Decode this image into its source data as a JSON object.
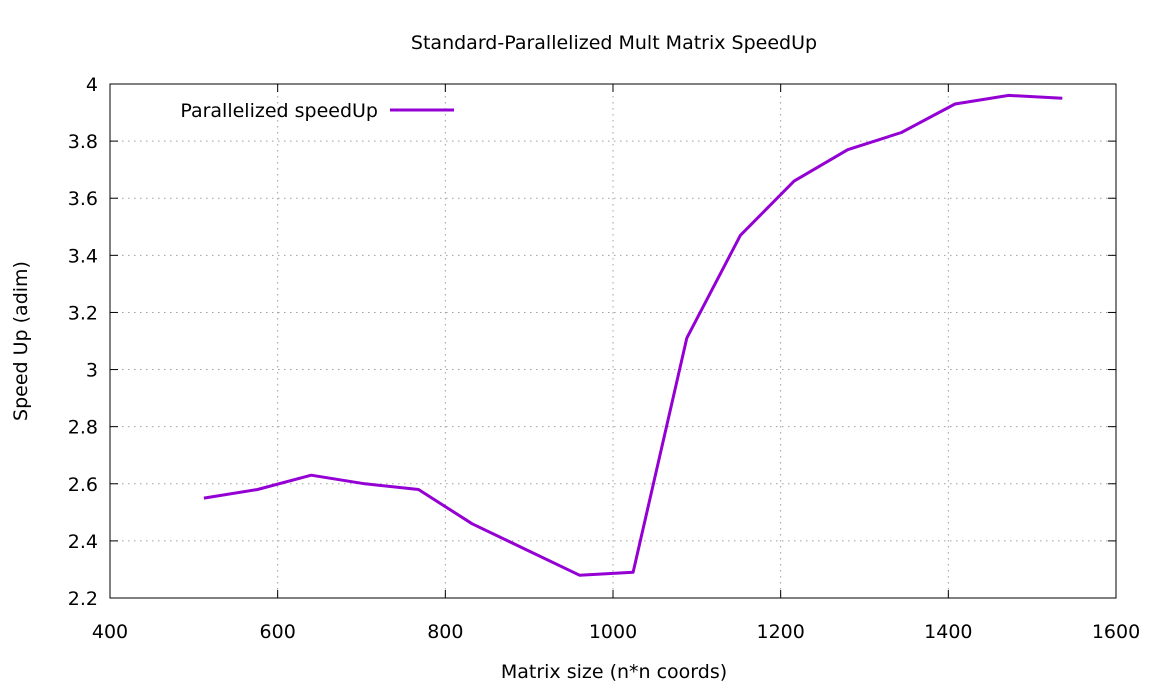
{
  "chart_data": {
    "type": "line",
    "title": "Standard-Parallelized Mult Matrix SpeedUp",
    "xlabel": "Matrix size (n*n coords)",
    "ylabel": "Speed Up (adim)",
    "xlim": [
      400,
      1600
    ],
    "ylim": [
      2.2,
      4.0
    ],
    "x_ticks": [
      400,
      600,
      800,
      1000,
      1200,
      1400,
      1600
    ],
    "y_ticks": [
      2.2,
      2.4,
      2.6,
      2.8,
      3.0,
      3.2,
      3.4,
      3.6,
      3.8,
      4.0
    ],
    "x_tick_labels": [
      "400",
      "600",
      "800",
      "1000",
      "1200",
      "1400",
      "1600"
    ],
    "y_tick_labels": [
      "2.2",
      "2.4",
      "2.6",
      "2.8",
      "3",
      "3.2",
      "3.4",
      "3.6",
      "3.8",
      "4"
    ],
    "grid": true,
    "legend_position": "top-left",
    "series": [
      {
        "name": "Parallelized speedUp",
        "color": "#9400d3",
        "x": [
          512,
          576,
          640,
          704,
          768,
          832,
          896,
          960,
          1024,
          1088,
          1152,
          1216,
          1280,
          1344,
          1408,
          1472,
          1536
        ],
        "y": [
          2.55,
          2.58,
          2.63,
          2.6,
          2.58,
          2.46,
          2.37,
          2.28,
          2.29,
          3.11,
          3.47,
          3.66,
          3.77,
          3.83,
          3.93,
          3.96,
          3.95
        ]
      }
    ]
  }
}
